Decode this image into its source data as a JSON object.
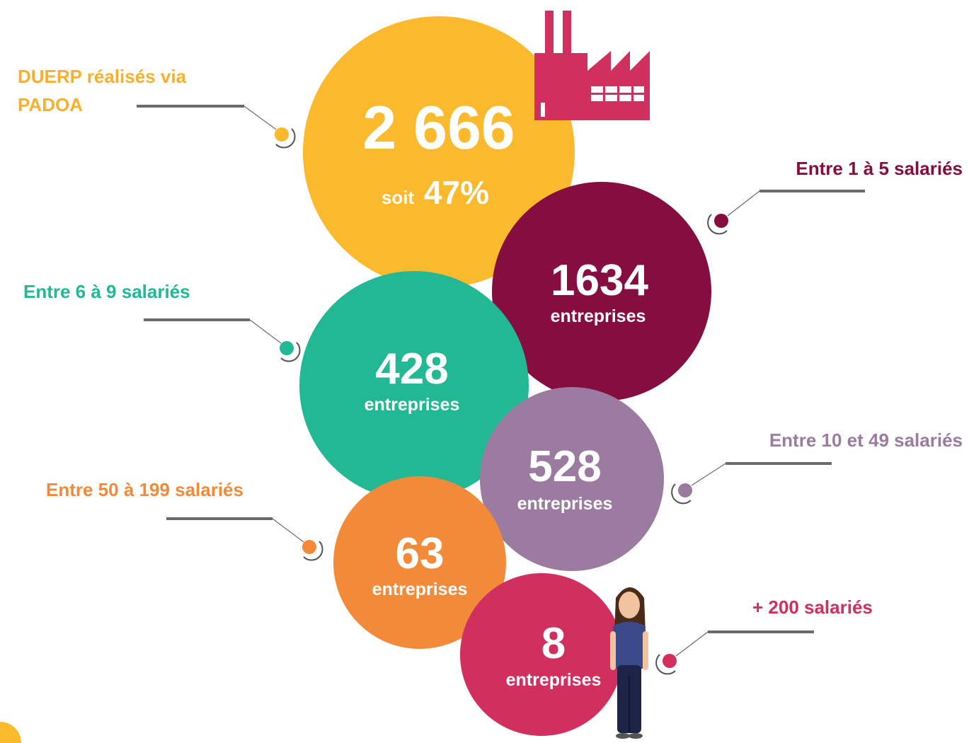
{
  "headline": {
    "label_lines": [
      "DUERP réalisés via",
      "PADOA"
    ],
    "value": "2 666",
    "share_prefix": "soit",
    "share": "47%"
  },
  "groups": [
    {
      "label": "Entre 1 à 5 salariés",
      "value": "1634",
      "unit": "entreprises"
    },
    {
      "label": "Entre 6 à 9 salariés",
      "value": "428",
      "unit": "entreprises"
    },
    {
      "label": "Entre 10 et 49 salariés",
      "value": "528",
      "unit": "entreprises"
    },
    {
      "label": "Entre 50 à 199 salariés",
      "value": "63",
      "unit": "entreprises"
    },
    {
      "label": "+ 200 salariés",
      "value": "8",
      "unit": "entreprises"
    }
  ]
}
